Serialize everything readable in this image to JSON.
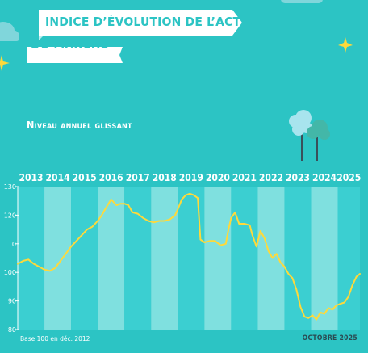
{
  "header": {
    "title_line1": "INDICE D’ÉVOLUTION DE L’ACTIVITÉ",
    "title_line2": "DU MARCHÉ"
  },
  "subtitle": "Niveau annuel glissant",
  "footnote": "Base 100 en déc. 2012",
  "date_label": "OCTOBRE 2025",
  "colors": {
    "background": "#2cc4c4",
    "band_light": "#7fe0df",
    "band_dark": "#3bcfd1",
    "line": "#ffd93a",
    "year_label": "#ffffff",
    "banner": "#ffffff",
    "star": "#ffd93a"
  },
  "chart_data": {
    "type": "line",
    "title": "Niveau annuel glissant",
    "xlabel": "",
    "ylabel": "",
    "categories": [
      "2013",
      "2014",
      "2015",
      "2016",
      "2017",
      "2018",
      "2019",
      "2020",
      "2021",
      "2022",
      "2023",
      "2024",
      "2025"
    ],
    "x_range": [
      2013.0,
      2025.83
    ],
    "ylim": [
      80,
      130
    ],
    "y_ticks": [
      80,
      90,
      100,
      110,
      120,
      130
    ],
    "grid": false,
    "legend": "none",
    "series": [
      {
        "x": [
          2013.0,
          2013.2,
          2013.4,
          2013.6,
          2013.8,
          2014.0,
          2014.2,
          2014.4,
          2014.6,
          2014.8,
          2015.0,
          2015.2,
          2015.4,
          2015.6,
          2015.8,
          2016.0,
          2016.15,
          2016.3,
          2016.5,
          2016.7,
          2016.85,
          2017.0,
          2017.15,
          2017.3,
          2017.5,
          2017.7,
          2017.9,
          2018.1,
          2018.3,
          2018.5,
          2018.7,
          2018.9,
          2019.0,
          2019.15,
          2019.3,
          2019.45,
          2019.6,
          2019.75,
          2019.85,
          2020.0,
          2020.2,
          2020.4,
          2020.6,
          2020.8,
          2020.9,
          2021.0,
          2021.15,
          2021.3,
          2021.5,
          2021.7,
          2021.8,
          2021.95,
          2022.1,
          2022.25,
          2022.4,
          2022.55,
          2022.7,
          2022.85,
          2023.0,
          2023.15,
          2023.3,
          2023.45,
          2023.6,
          2023.75,
          2023.9,
          2024.05,
          2024.2,
          2024.35,
          2024.5,
          2024.65,
          2024.8,
          2024.95,
          2025.1,
          2025.25,
          2025.4,
          2025.55,
          2025.7,
          2025.83
        ],
        "y": [
          103,
          104,
          104.5,
          103,
          102,
          101,
          100.5,
          101.5,
          104,
          106.5,
          109,
          111,
          113,
          115,
          116,
          118,
          120,
          122.5,
          125.5,
          123.5,
          124,
          124,
          123.5,
          121,
          120.5,
          119,
          118,
          117.5,
          118,
          118,
          118.5,
          120,
          122,
          125.5,
          127,
          127.5,
          127,
          126,
          111.5,
          110.5,
          111,
          111,
          109.5,
          110,
          115,
          119,
          121,
          117,
          117,
          116.5,
          113,
          109,
          114.5,
          112,
          107.5,
          105,
          106.5,
          103.5,
          102,
          99.5,
          98,
          94,
          88,
          84.5,
          84,
          85,
          83.5,
          86,
          85.5,
          87.5,
          87,
          88.5,
          89,
          89.5,
          91.5,
          95.5,
          98.5,
          99.5
        ]
      }
    ]
  }
}
